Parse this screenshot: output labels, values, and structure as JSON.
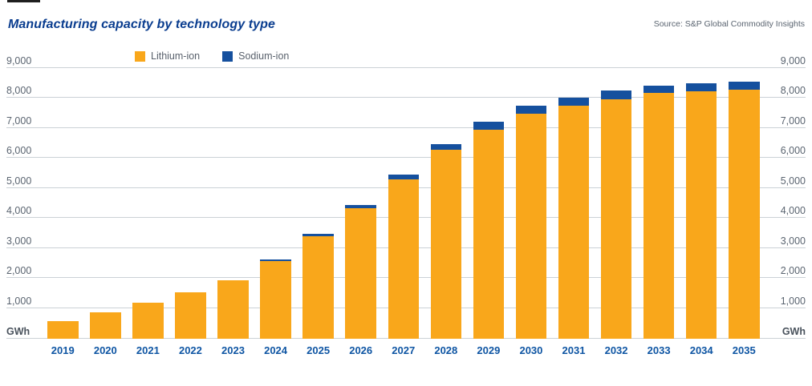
{
  "header": {
    "title": "Manufacturing capacity by technology type",
    "source": "Source: S&P Global Commodity Insights"
  },
  "legend": {
    "items": [
      {
        "label": "Lithium-ion",
        "color": "#f9a71b"
      },
      {
        "label": "Sodium-ion",
        "color": "#15509e"
      }
    ]
  },
  "axis": {
    "unit_label": "GWh",
    "tick_labels": [
      "9,000",
      "8,000",
      "7,000",
      "6,000",
      "5,000",
      "4,000",
      "3,000",
      "2,000",
      "1,000"
    ],
    "tick_values": [
      9000,
      8000,
      7000,
      6000,
      5000,
      4000,
      3000,
      2000,
      1000
    ]
  },
  "chart_data": {
    "type": "bar",
    "stacked": true,
    "title": "Manufacturing capacity by technology type",
    "unit": "GWh",
    "categories": [
      "2019",
      "2020",
      "2021",
      "2022",
      "2023",
      "2024",
      "2025",
      "2026",
      "2027",
      "2028",
      "2029",
      "2030",
      "2031",
      "2032",
      "2033",
      "2034",
      "2035"
    ],
    "series": [
      {
        "name": "Lithium-ion",
        "color": "#f9a71b",
        "values": [
          570,
          870,
          1190,
          1530,
          1920,
          2560,
          3390,
          4330,
          5280,
          6260,
          6930,
          7460,
          7740,
          7960,
          8150,
          8225,
          8275
        ]
      },
      {
        "name": "Sodium-ion",
        "color": "#15509e",
        "values": [
          0,
          0,
          0,
          0,
          0,
          60,
          90,
          110,
          160,
          190,
          260,
          265,
          265,
          270,
          260,
          265,
          265
        ]
      }
    ],
    "ylabel": "GWh",
    "ylim": [
      0,
      9000
    ],
    "ytick_interval": 1000,
    "grid": "horizontal",
    "legend_position": "top-left"
  }
}
